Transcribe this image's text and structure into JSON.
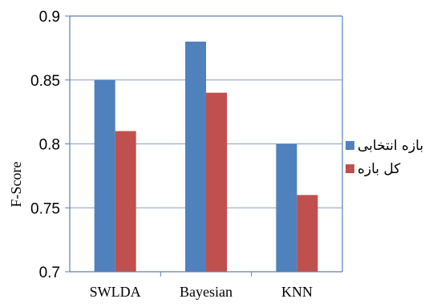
{
  "chart_data": {
    "type": "bar",
    "title": "",
    "xlabel": "",
    "ylabel": "F-Score",
    "ylim": [
      0.7,
      0.9
    ],
    "y_ticks": [
      "0.7",
      "0.75",
      "0.8",
      "0.85",
      "0.9"
    ],
    "y_tick_values": [
      0.7,
      0.75,
      0.8,
      0.85,
      0.9
    ],
    "grid": "horizontal",
    "legend_position": "right",
    "categories": [
      "SWLDA",
      "Bayesian",
      "KNN"
    ],
    "series": [
      {
        "name": "بازه انتخابی",
        "values": [
          0.85,
          0.88,
          0.8
        ],
        "color": "#4f81bd"
      },
      {
        "name": "کل بازه",
        "values": [
          0.81,
          0.84,
          0.76
        ],
        "color": "#c0504d"
      }
    ]
  }
}
